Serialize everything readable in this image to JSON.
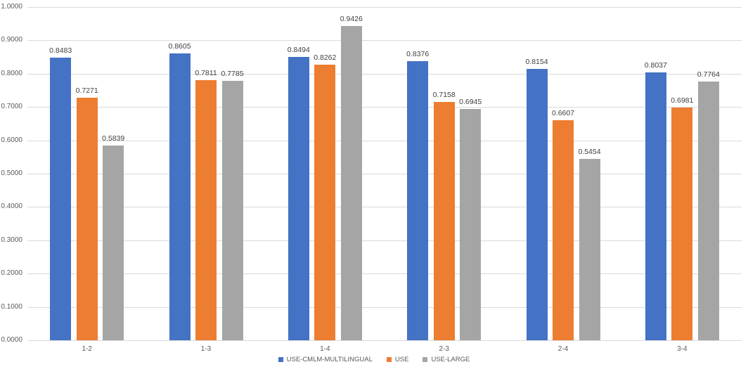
{
  "chart_data": {
    "type": "bar",
    "categories": [
      "1-2",
      "1-3",
      "1-4",
      "2-3",
      "2-4",
      "3-4"
    ],
    "series": [
      {
        "name": "USE-CMLM-MULTILINGUAL",
        "color": "#4472C4",
        "values": [
          0.8483,
          0.8605,
          0.8494,
          0.8376,
          0.8154,
          0.8037
        ]
      },
      {
        "name": "USE",
        "color": "#ED7D31",
        "values": [
          0.7271,
          0.7811,
          0.8262,
          0.7158,
          0.6607,
          0.6981
        ]
      },
      {
        "name": "USE-LARGE",
        "color": "#A5A5A5",
        "values": [
          0.5839,
          0.7785,
          0.9426,
          0.6945,
          0.5454,
          0.7764
        ]
      }
    ],
    "title": "",
    "xlabel": "",
    "ylabel": "",
    "ylim": [
      0.0,
      1.0
    ],
    "ytick_step": 0.1,
    "ytick_labels": [
      "0.0000",
      "0.1000",
      "0.2000",
      "0.3000",
      "0.4000",
      "0.5000",
      "0.6000",
      "0.7000",
      "0.8000",
      "0.9000",
      "1.0000"
    ],
    "value_label_decimals": 4,
    "grid": true,
    "legend_position": "bottom",
    "legend_labels": [
      "USE-CMLM-MULTILINGUAL",
      "USE",
      "USE-LARGE"
    ]
  },
  "colors": {
    "background": "#FFFFFF",
    "gridline": "#D9D9D9",
    "axis_line": "#D9D9D9",
    "tick_label": "#595959",
    "value_label": "#404040"
  }
}
